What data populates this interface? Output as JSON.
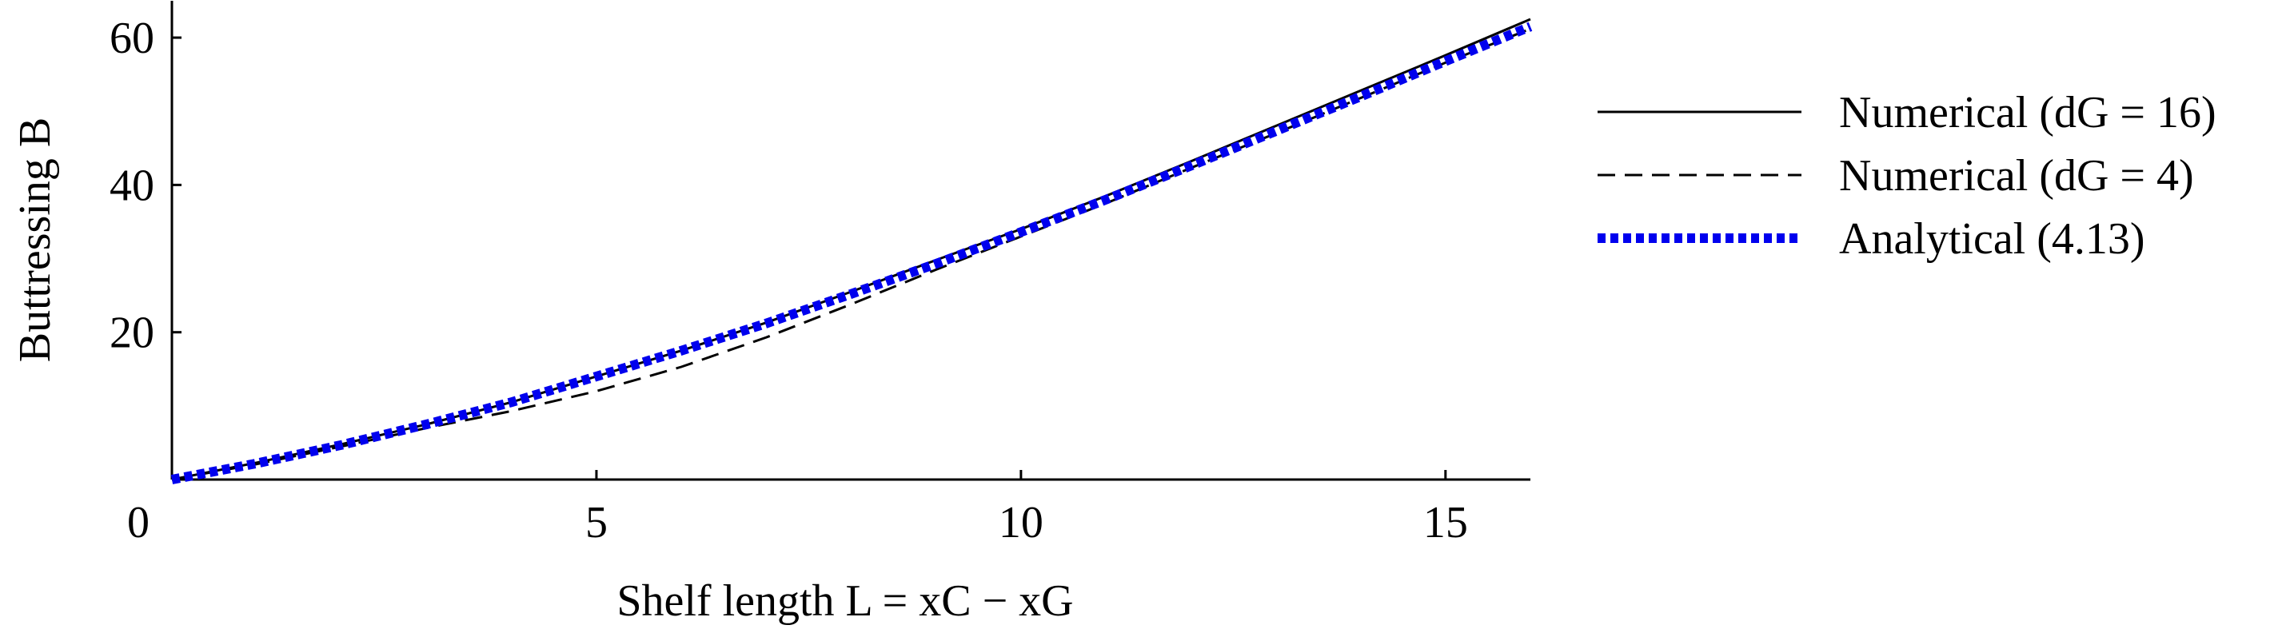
{
  "chart_data": {
    "type": "line",
    "x_label": "Shelf length L = xC − xG",
    "y_label": "Buttressing B",
    "x": [
      0,
      1,
      2,
      3,
      4,
      5,
      6,
      7,
      8,
      9,
      10,
      11,
      12,
      13,
      14,
      15,
      16
    ],
    "series": [
      {
        "name": "Numerical (dG = 16)",
        "color": "#000000",
        "style": "solid",
        "values": [
          0,
          2.3,
          4.8,
          7.5,
          10.5,
          14,
          17.5,
          21.3,
          25.5,
          29.8,
          34,
          38.5,
          43.2,
          48,
          52.8,
          57.6,
          62.5
        ]
      },
      {
        "name": "Numerical (dG = 4)",
        "color": "#000000",
        "style": "dashed",
        "values": [
          0,
          2.1,
          4.5,
          7,
          9.3,
          12,
          15.3,
          19.3,
          23.8,
          28.5,
          33,
          37.5,
          42.3,
          47,
          51.8,
          56.6,
          61.2
        ]
      },
      {
        "name": "Analytical (4.13)",
        "color": "#0000ee",
        "style": "dotted",
        "values": [
          0,
          2.2,
          4.7,
          7.5,
          10.5,
          14,
          17.5,
          21.2,
          25.2,
          29.3,
          33.6,
          38,
          42.6,
          47.3,
          52,
          56.8,
          61.5
        ]
      }
    ],
    "xlim": [
      0,
      16
    ],
    "ylim": [
      0,
      65
    ],
    "xticks": [
      0,
      5,
      10,
      15
    ],
    "yticks": [
      20,
      40,
      60
    ],
    "legend": "right",
    "grid": false
  }
}
